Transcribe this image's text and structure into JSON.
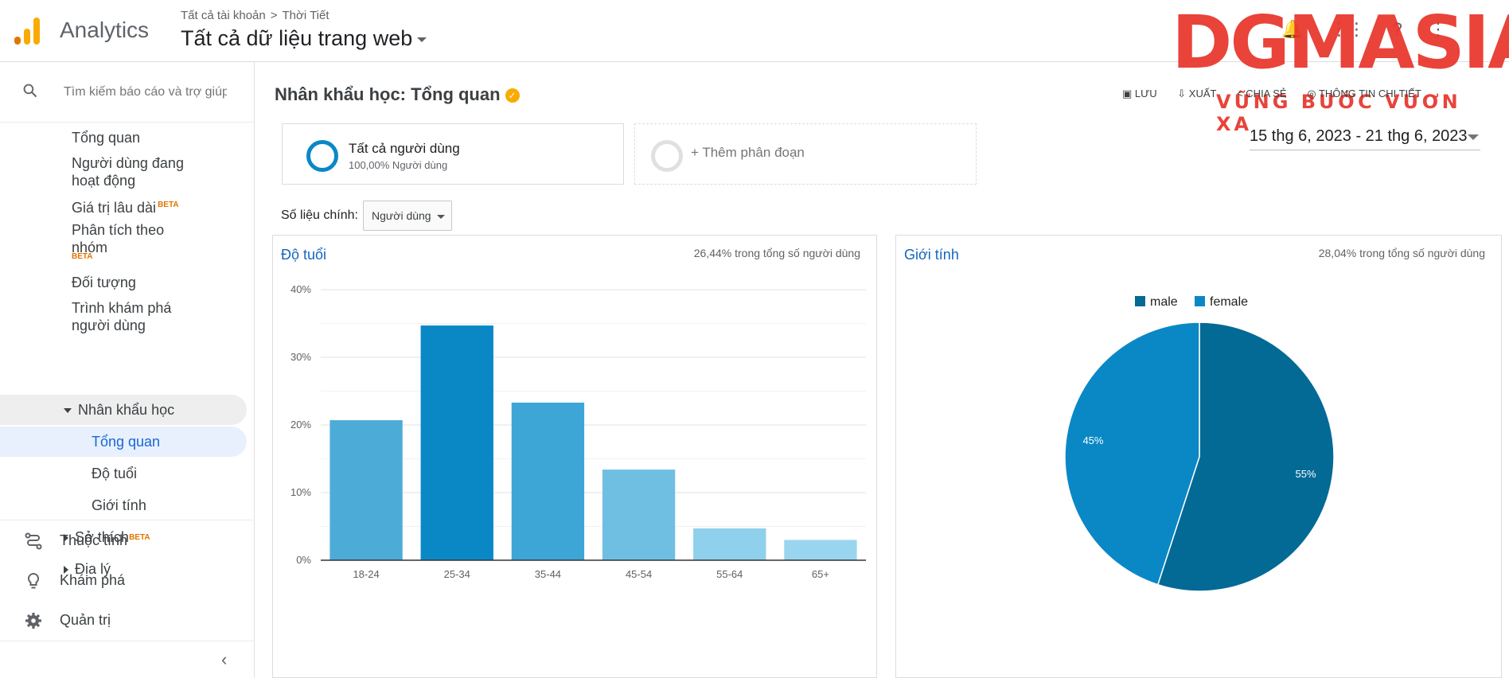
{
  "app": {
    "name": "Analytics"
  },
  "breadcrumb": {
    "account": "Tất cả tài khoản",
    "separator": ">",
    "property": "Thời Tiết"
  },
  "view": {
    "name": "Tất cả dữ liệu trang web"
  },
  "watermark": {
    "brand": "DGMASIA",
    "tagline": "VỮNG BƯỚC VƯƠN XA"
  },
  "search": {
    "placeholder": "Tìm kiếm báo cáo và trợ giúp"
  },
  "sidebar": {
    "items": {
      "overview": "Tổng quan",
      "active_users": "Người dùng đang hoạt động",
      "lifetime_value": "Giá trị lâu dài",
      "cohort": "Phân tích theo nhóm",
      "audiences": "Đối tượng",
      "user_explorer": "Trình khám phá người dùng",
      "demographics": "Nhân khẩu học",
      "demo_overview": "Tổng quan",
      "demo_age": "Độ tuổi",
      "demo_gender": "Giới tính",
      "interests": "Sở thích",
      "geo": "Địa lý"
    },
    "beta_label": "BETA",
    "bottom": {
      "attribution": "Thuộc tính",
      "discover": "Khám phá",
      "admin": "Quản trị"
    }
  },
  "page": {
    "title": "Nhân khẩu học: Tổng quan",
    "actions": {
      "save": "LƯU",
      "export": "XUẤT",
      "share": "CHIA SẺ",
      "insights": "THÔNG TIN CHI TIẾT"
    },
    "segment_all": {
      "name": "Tất cả người dùng",
      "sub": "100,00% Người dùng"
    },
    "segment_add": "+ Thêm phân đoạn",
    "date_range": "15 thg 6, 2023 - 21 thg 6, 2023",
    "metric_label": "Số liệu chính:",
    "metric_value": "Người dùng"
  },
  "age_card": {
    "title": "Độ tuổi",
    "note": "26,44% trong tổng số người dùng"
  },
  "gender_card": {
    "title": "Giới tính",
    "note": "28,04% trong tổng số người dùng"
  },
  "chart_data": [
    {
      "type": "bar",
      "title": "Độ tuổi",
      "categories": [
        "18-24",
        "25-34",
        "35-44",
        "45-54",
        "55-64",
        "65+"
      ],
      "values": [
        20.7,
        34.7,
        23.3,
        13.4,
        4.7,
        3.0
      ],
      "colors": [
        "#4dabd8",
        "#0a88c6",
        "#3ea6d6",
        "#6fbfe3",
        "#8fd0ec",
        "#9ad5ef"
      ],
      "yticks": [
        "0%",
        "10%",
        "20%",
        "30%",
        "40%"
      ],
      "ylim": [
        0,
        40
      ],
      "grid": true
    },
    {
      "type": "pie",
      "title": "Giới tính",
      "legend": [
        "male",
        "female"
      ],
      "values": [
        55,
        45
      ],
      "labels": [
        "55%",
        "45%"
      ],
      "colors": [
        "#036a96",
        "#0a88c6"
      ],
      "legend_position": "top"
    }
  ]
}
